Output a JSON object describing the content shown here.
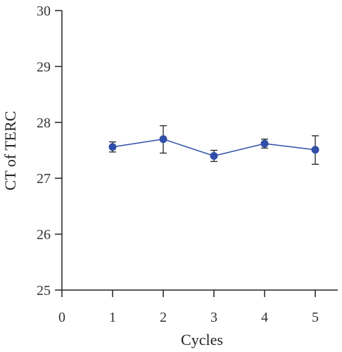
{
  "chart_data": {
    "type": "line",
    "xlabel": "Cycles",
    "ylabel": "CT of TERC",
    "xlim": [
      0,
      5.5
    ],
    "ylim": [
      25,
      30
    ],
    "x_ticks": [
      0,
      1,
      2,
      3,
      4,
      5
    ],
    "y_ticks": [
      25,
      26,
      27,
      28,
      29,
      30
    ],
    "grid": false,
    "series": [
      {
        "x": [
          1,
          2,
          3,
          4,
          5
        ],
        "values": [
          27.56,
          27.7,
          27.4,
          27.62,
          27.51
        ],
        "error_lower": [
          0.09,
          0.25,
          0.1,
          0.08,
          0.26
        ],
        "error_upper": [
          0.09,
          0.24,
          0.1,
          0.08,
          0.25
        ],
        "color": "#2f4fa8"
      }
    ]
  }
}
